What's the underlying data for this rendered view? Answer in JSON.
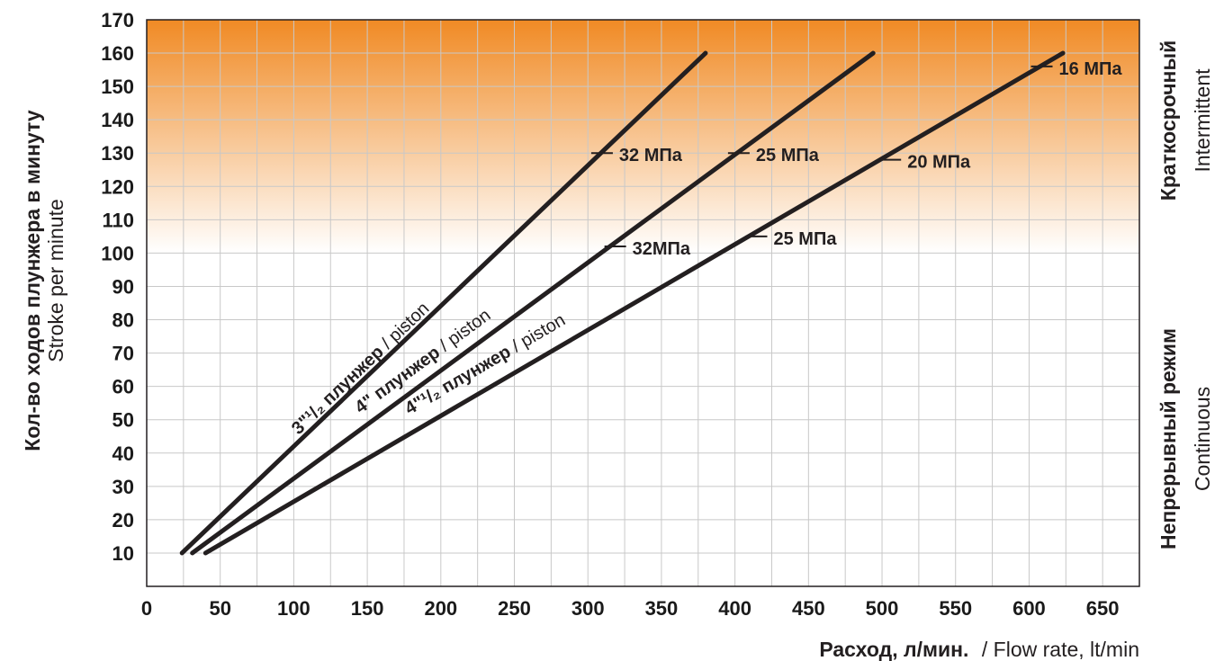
{
  "chart_data": {
    "type": "line",
    "xlabel_ru": "Расход, л/мин.",
    "xlabel_en": "/ Flow rate, lt/min",
    "ylabel_ru": "Кол-во ходов плунжера в минуту",
    "ylabel_en": "Stroke per minute",
    "xlim": [
      0,
      675
    ],
    "ylim": [
      0,
      170
    ],
    "x_ticks": [
      0,
      50,
      100,
      150,
      200,
      250,
      300,
      350,
      400,
      450,
      500,
      550,
      600,
      650
    ],
    "y_ticks": [
      10,
      20,
      30,
      40,
      50,
      60,
      70,
      80,
      90,
      100,
      110,
      120,
      130,
      140,
      150,
      160,
      170
    ],
    "grid": true,
    "gradient_colors": {
      "top": "#f08a24",
      "bottom": "#ffffff"
    },
    "gradient_range_y": [
      100,
      170
    ],
    "series": [
      {
        "label_bold": "3\"¹/₂ плунжер",
        "label_light": " / piston",
        "x": [
          24,
          380
        ],
        "y": [
          10,
          160
        ]
      },
      {
        "label_bold": "4\" плунжер",
        "label_light": " / piston",
        "x": [
          31,
          494
        ],
        "y": [
          10,
          160
        ]
      },
      {
        "label_bold": "4\"¹/₂ плунжер",
        "label_light": " / piston",
        "x": [
          40,
          623
        ],
        "y": [
          10,
          160
        ]
      }
    ],
    "annotations": [
      {
        "text": "32 МПа",
        "x": 309,
        "y": 130,
        "series": 0
      },
      {
        "text": "32МПа",
        "x": 318,
        "y": 102,
        "series": 1
      },
      {
        "text": "25 МПа",
        "x": 402,
        "y": 130,
        "series": 1
      },
      {
        "text": "25 МПа",
        "x": 414,
        "y": 105,
        "series": 2
      },
      {
        "text": "20 МПа",
        "x": 505,
        "y": 128,
        "series": 2
      },
      {
        "text": "16 МПа",
        "x": 608,
        "y": 156,
        "series": 2
      }
    ],
    "right_labels": {
      "intermittent_ru": "Краткосрочный",
      "intermittent_en": "Intermittent",
      "continuous_ru": "Непрерывный режим",
      "continuous_en": "Continuous"
    }
  }
}
